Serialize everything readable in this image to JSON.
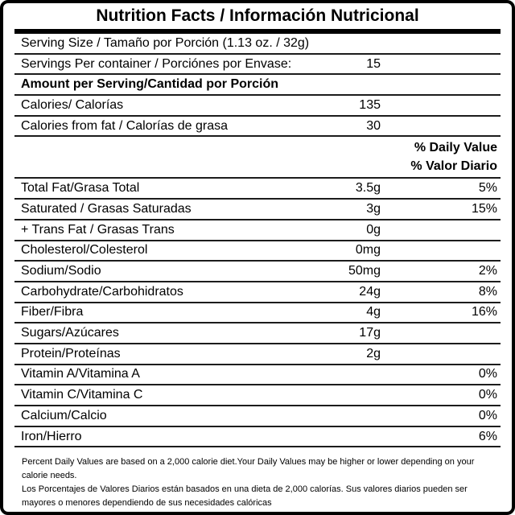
{
  "title": "Nutrition Facts / Información Nutricional",
  "table": {
    "rows": [
      {
        "type": "row",
        "label": "Serving Size / Tamaño por Porción (1.13 oz. / 32g)",
        "amount": "",
        "percent": ""
      },
      {
        "type": "row",
        "label": "Servings Per container / Porciónes por Envase:",
        "amount": "15",
        "percent": ""
      },
      {
        "type": "header",
        "label": "Amount per Serving/Cantidad por Porción",
        "amount": "",
        "percent": ""
      },
      {
        "type": "row",
        "label": "Calories/ Calorías",
        "amount": "135",
        "percent": ""
      },
      {
        "type": "row",
        "label": "Calories from fat / Calorías de grasa",
        "amount": "30",
        "percent": ""
      },
      {
        "type": "dv",
        "line1": "% Daily Value",
        "line2": "% Valor Diario"
      },
      {
        "type": "row",
        "label": "Total Fat/Grasa Total",
        "amount": "3.5g",
        "percent": "5%"
      },
      {
        "type": "row",
        "label": "Saturated / Grasas Saturadas",
        "amount": "3g",
        "percent": "15%"
      },
      {
        "type": "row",
        "label": "+ Trans Fat / Grasas Trans",
        "amount": "0g",
        "percent": ""
      },
      {
        "type": "row",
        "label": "Cholesterol/Colesterol",
        "amount": "0mg",
        "percent": ""
      },
      {
        "type": "row",
        "label": "Sodium/Sodio",
        "amount": "50mg",
        "percent": "2%"
      },
      {
        "type": "row",
        "label": "Carbohydrate/Carbohidratos",
        "amount": "24g",
        "percent": "8%"
      },
      {
        "type": "row",
        "label": "Fiber/Fibra",
        "amount": "4g",
        "percent": "16%"
      },
      {
        "type": "row",
        "label": "Sugars/Azúcares",
        "amount": "17g",
        "percent": ""
      },
      {
        "type": "row",
        "label": "Protein/Proteínas",
        "amount": "2g",
        "percent": ""
      },
      {
        "type": "row",
        "label": "Vitamin A/Vitamina A",
        "amount": "",
        "percent": "0%"
      },
      {
        "type": "row",
        "label": "Vitamin C/Vitamina C",
        "amount": "",
        "percent": "0%"
      },
      {
        "type": "row",
        "label": "Calcium/Calcio",
        "amount": "",
        "percent": "0%"
      },
      {
        "type": "row",
        "label": "Iron/Hierro",
        "amount": "",
        "percent": "6%"
      }
    ]
  },
  "footer": {
    "english": "Percent Daily Values are based on a 2,000 calorie diet.Your Daily Values may be higher or lower depending on your calorie needs.",
    "spanish": "Los Porcentajes de Valores Diarios están basados en una dieta de 2,000 calorías. Sus valores diarios pueden ser mayores o menores dependiendo de sus necesidades calóricas"
  },
  "colors": {
    "text": "#000000",
    "background": "#ffffff",
    "divider": "#1c1c1c",
    "border": "#000000"
  }
}
